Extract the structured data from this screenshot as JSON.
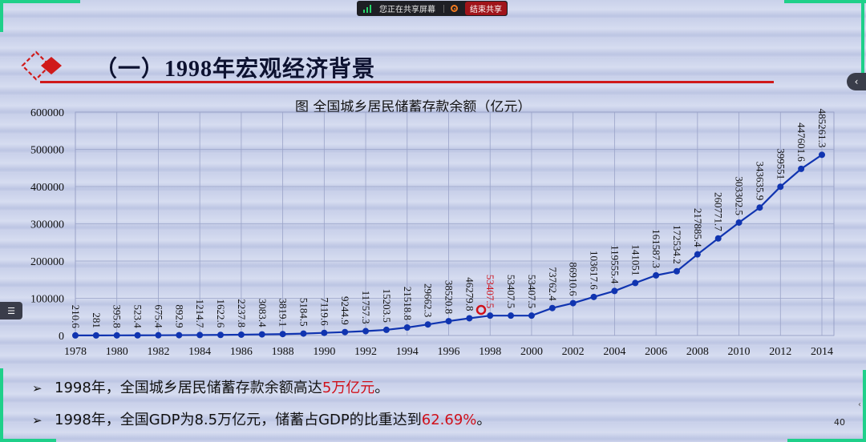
{
  "share_bar": {
    "status": "您正在共享屏幕",
    "stop_label": "结束共享",
    "signal_icon": "signal-bars-icon",
    "record_icon": "record-icon"
  },
  "slide": {
    "title": "（一）1998年宏观经济背景",
    "page_number": "40",
    "bullets": [
      {
        "prefix": "1998年，全国城乡居民储蓄存款余额高达",
        "highlight": "5万亿元",
        "suffix": "。"
      },
      {
        "prefix": "1998年，全国GDP为8.5万亿元，储蓄占GDP的比重达到",
        "highlight": "62.69%",
        "suffix": "。"
      }
    ],
    "bullet_glyph": "➢",
    "accent_color": "#d0101a",
    "nav_right_glyph": "‹",
    "nav_left_glyph": "☰"
  },
  "chart_data": {
    "type": "line",
    "title": "图 全国城乡居民储蓄存款余额（亿元）",
    "xlabel": "",
    "ylabel": "",
    "ylim": [
      0,
      600000
    ],
    "yticks": [
      0,
      100000,
      200000,
      300000,
      400000,
      500000,
      600000
    ],
    "xtick_labels": [
      "1978",
      "1980",
      "1982",
      "1984",
      "1986",
      "1988",
      "1990",
      "1992",
      "1994",
      "1996",
      "1998",
      "2000",
      "2002",
      "2004",
      "2006",
      "2008",
      "2010",
      "2012",
      "2014"
    ],
    "grid": true,
    "legend": null,
    "line_color": "#1034b0",
    "highlight_color": "#d0101a",
    "highlight_year": 1998,
    "annotation": "red circle marker near 1997-1998",
    "x": [
      1978,
      1979,
      1980,
      1981,
      1982,
      1983,
      1984,
      1985,
      1986,
      1987,
      1988,
      1989,
      1990,
      1991,
      1992,
      1993,
      1994,
      1995,
      1996,
      1997,
      1998,
      1999,
      2000,
      2001,
      2002,
      2003,
      2004,
      2005,
      2006,
      2007,
      2008,
      2009,
      2010,
      2011,
      2012,
      2013,
      2014
    ],
    "values": [
      210.6,
      281,
      395.8,
      523.4,
      675.4,
      892.9,
      1214.7,
      1622.6,
      2237.8,
      3083.4,
      3819.1,
      5184.5,
      7119.6,
      9244.9,
      11757.3,
      15203.5,
      21518.8,
      29662.3,
      38520.8,
      46279.8,
      53407.5,
      53407.5,
      53407.5,
      73762.4,
      86910.6,
      103617.6,
      119555.4,
      141051,
      161587.3,
      172534.2,
      217885.4,
      260771.7,
      303302.5,
      343635.9,
      399551,
      447601.6,
      485261.3
    ],
    "labels": [
      "210.6",
      "281",
      "395.8",
      "523.4",
      "675.4",
      "892.9",
      "1214.7",
      "1622.6",
      "2237.8",
      "3083.4",
      "3819.1",
      "5184.5",
      "7119.6",
      "9244.9",
      "11757.3",
      "15203.5",
      "21518.8",
      "29662.3",
      "38520.8",
      "46279.8",
      "53407.5",
      "53407.5",
      "53407.5",
      "73762.4",
      "86910.6",
      "103617.6",
      "119555.4",
      "141051",
      "161587.3",
      "172534.2",
      "217885.4",
      "260771.7",
      "303302.5",
      "343635.9",
      "399551",
      "447601.6",
      "485261.3"
    ]
  }
}
